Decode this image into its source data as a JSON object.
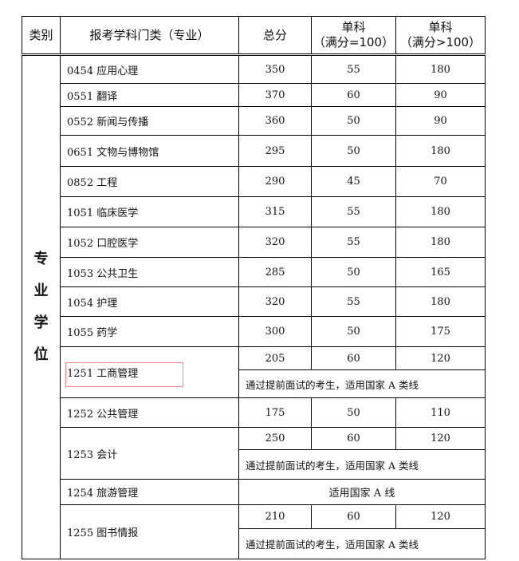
{
  "header": {
    "category": "类别",
    "major": "报考学科门类（专业）",
    "total": "总分",
    "single100": [
      "单科",
      "（满分=100）"
    ],
    "single_gt100": [
      "单科",
      "（满分>100）"
    ]
  },
  "category_label": [
    "专",
    "业",
    "学",
    "位"
  ],
  "rows": [
    {
      "name": "0454 应用心理",
      "total": "350",
      "s100": "55",
      "sgt100": "180"
    },
    {
      "name": "0551 翻译",
      "total": "370",
      "s100": "60",
      "sgt100": "90"
    },
    {
      "name": "0552 新闻与传播",
      "total": "360",
      "s100": "50",
      "sgt100": "90"
    },
    {
      "name": "0651 文物与博物馆",
      "total": "295",
      "s100": "50",
      "sgt100": "180"
    },
    {
      "name": "0852 工程",
      "total": "290",
      "s100": "45",
      "sgt100": "70"
    },
    {
      "name": "1051 临床医学",
      "total": "315",
      "s100": "55",
      "sgt100": "180"
    },
    {
      "name": "1052 口腔医学",
      "total": "320",
      "s100": "55",
      "sgt100": "180"
    },
    {
      "name": "1053 公共卫生",
      "total": "285",
      "s100": "50",
      "sgt100": "165"
    },
    {
      "name": "1054 护理",
      "total": "320",
      "s100": "55",
      "sgt100": "180"
    },
    {
      "name": "1055 药学",
      "total": "300",
      "s100": "50",
      "sgt100": "175"
    },
    {
      "name": "1251 工商管理",
      "total": "205",
      "s100": "60",
      "sgt100": "120",
      "note": "通过提前面试的考生，适用国家 A 类线"
    },
    {
      "name": "1252 公共管理",
      "total": "175",
      "s100": "50",
      "sgt100": "110"
    },
    {
      "name": "1253 会计",
      "total": "250",
      "s100": "60",
      "sgt100": "120",
      "note": "通过提前面试的考生，适用国家 A 类线"
    },
    {
      "name": "1254 旅游管理",
      "merged": "适用国家 A 线"
    },
    {
      "name": "1255 图书情报",
      "total": "210",
      "s100": "60",
      "sgt100": "120",
      "note": "通过提前面试的考生，适用国家 A 类线"
    }
  ],
  "highlight_color": "#f08585"
}
